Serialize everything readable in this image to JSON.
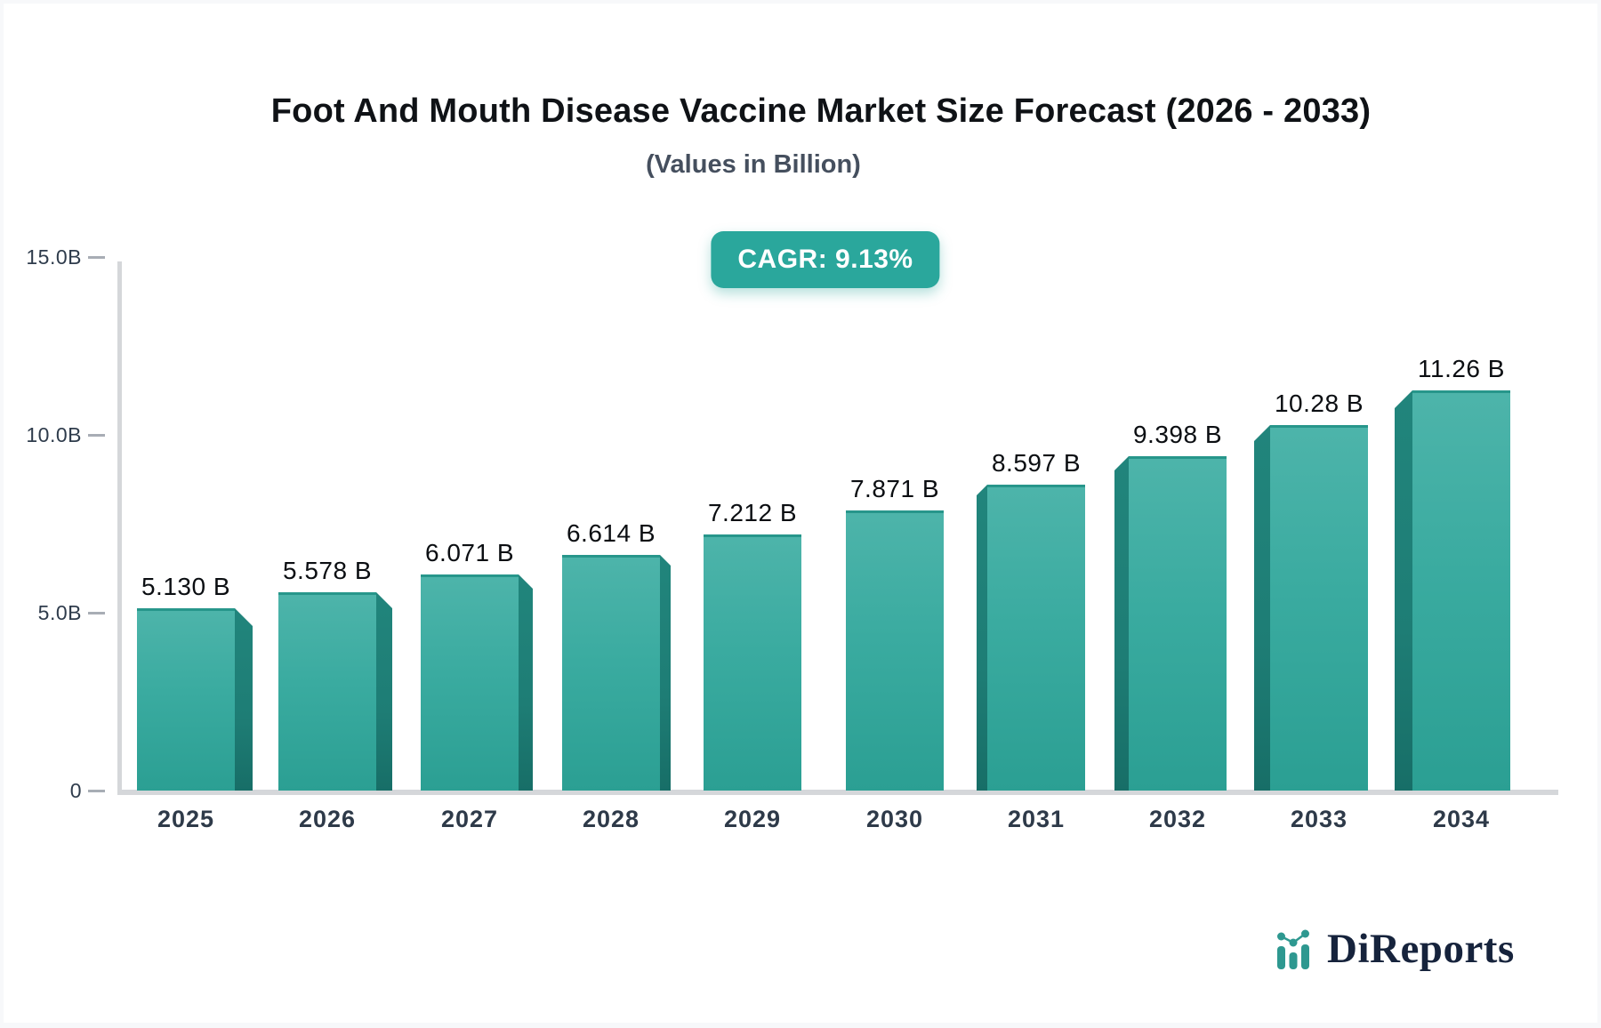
{
  "page": {
    "background": "#f7f8fa",
    "card_background": "#ffffff"
  },
  "header": {
    "title": "Foot And Mouth Disease Vaccine Market Size Forecast (2026 - 2033)",
    "subtitle": "(Values in Billion)",
    "cagr_badge_label": "CAGR: 9.13%",
    "badge_color": "#2aa79c"
  },
  "chart_data": {
    "type": "bar",
    "title": "Foot And Mouth Disease Vaccine Market Size Forecast (2026 - 2033)",
    "subtitle": "(Values in Billion)",
    "cagr_percent": 9.13,
    "categories": [
      "2025",
      "2026",
      "2027",
      "2028",
      "2029",
      "2030",
      "2031",
      "2032",
      "2033",
      "2034"
    ],
    "values": [
      5.13,
      5.578,
      6.071,
      6.614,
      7.212,
      7.871,
      8.597,
      9.398,
      10.28,
      11.26
    ],
    "value_labels": [
      "5.130 B",
      "5.578 B",
      "6.071 B",
      "6.614 B",
      "7.212 B",
      "7.871 B",
      "8.597 B",
      "9.398 B",
      "10.28 B",
      "11.26 B"
    ],
    "xlabel": "",
    "ylabel": "",
    "ylim": [
      0,
      15
    ],
    "yticks": [
      {
        "label": "15.0B",
        "value": 15
      },
      {
        "label": "10.0B",
        "value": 10
      },
      {
        "label": "5.0B",
        "value": 5
      },
      {
        "label": "0",
        "value": 0
      }
    ],
    "grid": false,
    "legend_position": "none",
    "units": "Billion",
    "bar_color_top": "#4db4aa",
    "bar_color_bottom": "#2b9f93",
    "bar_side_color": "#1e7d75",
    "side_panel_widths": [
      20,
      18,
      16,
      12,
      0,
      0,
      12,
      16,
      18,
      20
    ],
    "side_panel_direction": [
      "right",
      "right",
      "right",
      "right",
      "none",
      "none",
      "left",
      "left",
      "left",
      "left"
    ]
  },
  "branding": {
    "logo_text": "DiReports",
    "logo_icon": "bar-chart-trend-icon",
    "logo_text_color": "#16233c",
    "logo_accent_color": "#2e9890"
  }
}
